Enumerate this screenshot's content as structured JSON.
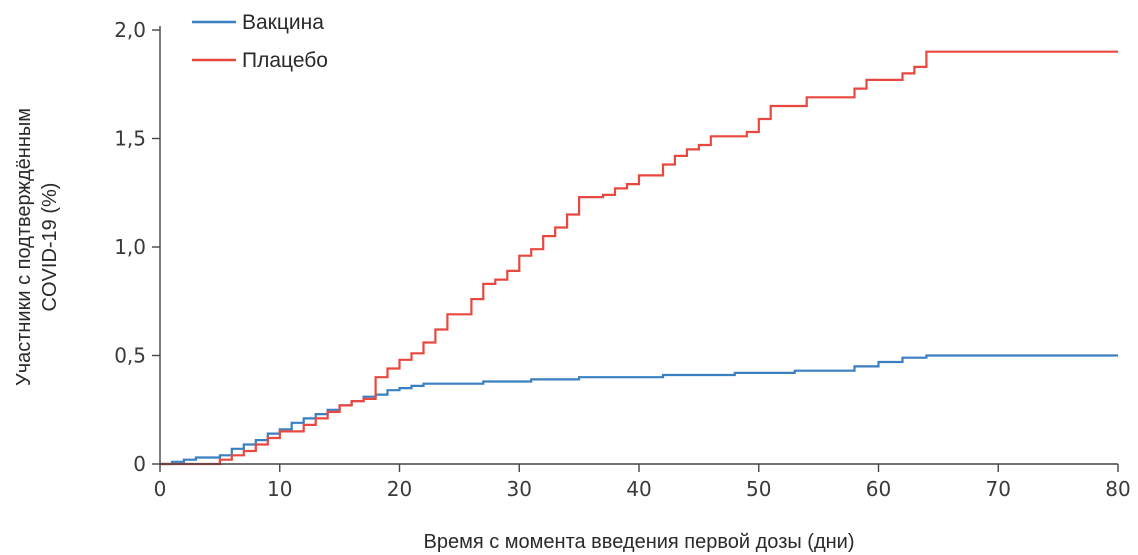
{
  "chart_data": {
    "type": "line",
    "step": true,
    "xlabel": "Время с момента введения первой дозы (дни)",
    "ylabel": [
      "Участники с подтверждённым",
      "COVID-19 (%)"
    ],
    "xlim": [
      0,
      80
    ],
    "ylim": [
      0,
      2.0
    ],
    "xticks": [
      0,
      10,
      20,
      30,
      40,
      50,
      60,
      70,
      80
    ],
    "yticks": [
      0,
      0.5,
      1.0,
      1.5,
      2.0
    ],
    "yticklabels": [
      "0",
      "0,5",
      "1,0",
      "1,5",
      "2,0"
    ],
    "xticklabels": [
      "0",
      "10",
      "20",
      "30",
      "40",
      "50",
      "60",
      "70",
      "80"
    ],
    "grid": false,
    "legend": "top-left",
    "series": [
      {
        "name": "Вакцина",
        "color": "#3a7fc1",
        "points": [
          [
            0,
            0
          ],
          [
            1,
            0.01
          ],
          [
            2,
            0.02
          ],
          [
            3,
            0.03
          ],
          [
            5,
            0.04
          ],
          [
            6,
            0.07
          ],
          [
            7,
            0.09
          ],
          [
            8,
            0.11
          ],
          [
            9,
            0.14
          ],
          [
            10,
            0.16
          ],
          [
            11,
            0.19
          ],
          [
            12,
            0.21
          ],
          [
            13,
            0.23
          ],
          [
            14,
            0.25
          ],
          [
            15,
            0.27
          ],
          [
            16,
            0.29
          ],
          [
            17,
            0.31
          ],
          [
            18,
            0.32
          ],
          [
            19,
            0.34
          ],
          [
            20,
            0.35
          ],
          [
            21,
            0.36
          ],
          [
            22,
            0.37
          ],
          [
            27,
            0.38
          ],
          [
            31,
            0.39
          ],
          [
            35,
            0.4
          ],
          [
            42,
            0.41
          ],
          [
            48,
            0.42
          ],
          [
            53,
            0.43
          ],
          [
            58,
            0.45
          ],
          [
            60,
            0.47
          ],
          [
            62,
            0.49
          ],
          [
            64,
            0.5
          ],
          [
            80,
            0.5
          ]
        ]
      },
      {
        "name": "Плацебо",
        "color": "#e8483f",
        "points": [
          [
            0,
            0
          ],
          [
            5,
            0.02
          ],
          [
            6,
            0.04
          ],
          [
            7,
            0.06
          ],
          [
            8,
            0.09
          ],
          [
            9,
            0.12
          ],
          [
            10,
            0.15
          ],
          [
            11,
            0.15
          ],
          [
            12,
            0.18
          ],
          [
            13,
            0.21
          ],
          [
            14,
            0.24
          ],
          [
            15,
            0.27
          ],
          [
            16,
            0.29
          ],
          [
            17,
            0.3
          ],
          [
            18,
            0.4
          ],
          [
            19,
            0.44
          ],
          [
            20,
            0.48
          ],
          [
            21,
            0.51
          ],
          [
            22,
            0.56
          ],
          [
            23,
            0.62
          ],
          [
            24,
            0.69
          ],
          [
            26,
            0.76
          ],
          [
            27,
            0.83
          ],
          [
            28,
            0.85
          ],
          [
            29,
            0.89
          ],
          [
            30,
            0.96
          ],
          [
            31,
            0.99
          ],
          [
            32,
            1.05
          ],
          [
            33,
            1.09
          ],
          [
            34,
            1.15
          ],
          [
            35,
            1.23
          ],
          [
            37,
            1.24
          ],
          [
            38,
            1.27
          ],
          [
            39,
            1.29
          ],
          [
            40,
            1.33
          ],
          [
            42,
            1.38
          ],
          [
            43,
            1.42
          ],
          [
            44,
            1.45
          ],
          [
            45,
            1.47
          ],
          [
            46,
            1.51
          ],
          [
            49,
            1.53
          ],
          [
            50,
            1.59
          ],
          [
            51,
            1.65
          ],
          [
            54,
            1.69
          ],
          [
            58,
            1.73
          ],
          [
            59,
            1.77
          ],
          [
            62,
            1.8
          ],
          [
            63,
            1.83
          ],
          [
            64,
            1.9
          ],
          [
            80,
            1.9
          ]
        ]
      }
    ]
  }
}
